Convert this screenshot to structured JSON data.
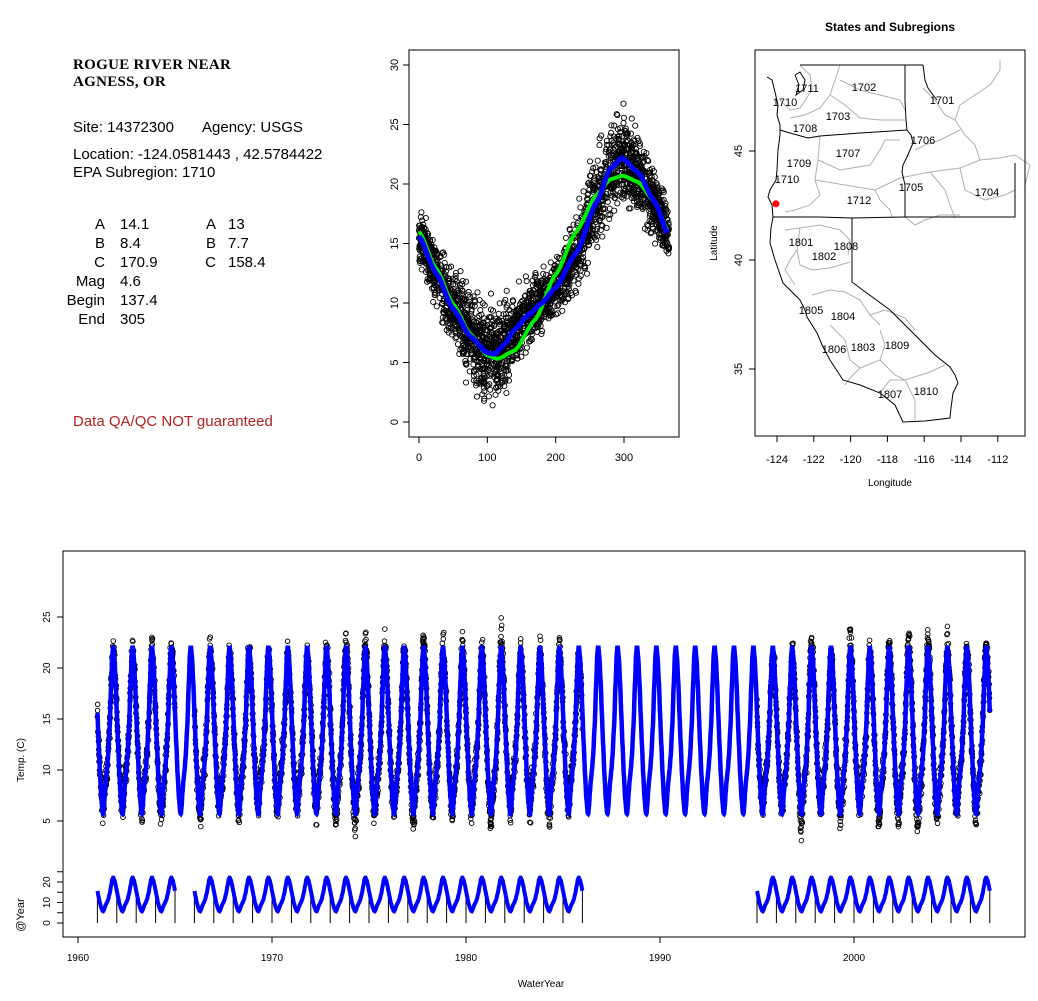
{
  "site_info": {
    "title_line1": "ROGUE RIVER NEAR",
    "title_line2": "AGNESS, OR",
    "site": "Site: 14372300",
    "agency": "Agency: USGS",
    "location": "Location: -124.0581443 , 42.5784422",
    "epa_subregion": "EPA Subregion: 1710",
    "params_col1": [
      {
        "label": "A",
        "value": "14.1"
      },
      {
        "label": "B",
        "value": "8.4"
      },
      {
        "label": "C",
        "value": "170.9"
      },
      {
        "label": "Mag",
        "value": "4.6"
      },
      {
        "label": "Begin",
        "value": "137.4"
      },
      {
        "label": "End",
        "value": "305"
      }
    ],
    "params_col2": [
      {
        "label": "A",
        "value": "13"
      },
      {
        "label": "B",
        "value": "7.7"
      },
      {
        "label": "C",
        "value": "158.4"
      }
    ],
    "disclaimer": "Data QA/QC NOT guaranteed",
    "disclaimer_color": "#b22222"
  },
  "chart_data": [
    {
      "id": "annual-cycle",
      "type": "scatter",
      "title": "",
      "xlabel": "",
      "ylabel": "",
      "xlim": [
        0,
        365
      ],
      "ylim": [
        0,
        30
      ],
      "x_ticks": [
        "0",
        "100",
        "200",
        "300"
      ],
      "y_ticks": [
        "0",
        "5",
        "10",
        "15",
        "20",
        "25",
        "30"
      ],
      "series": [
        {
          "name": "observations",
          "style": "open-circles",
          "color": "#000000"
        },
        {
          "name": "model-fit-mag",
          "style": "line",
          "color": "#0000ff",
          "x": [
            0,
            25,
            50,
            75,
            100,
            110,
            125,
            140,
            160,
            180,
            200,
            230,
            260,
            280,
            297,
            320,
            345,
            365
          ],
          "y": [
            15.6,
            12.5,
            9.5,
            7.2,
            5.8,
            5.7,
            6.5,
            7.8,
            9.0,
            10.0,
            11.3,
            14.2,
            18.5,
            21.3,
            22.2,
            21.0,
            18.5,
            15.7
          ]
        },
        {
          "name": "model-fit-sine",
          "style": "line",
          "color": "#00ee00",
          "x": [
            0,
            25,
            50,
            75,
            100,
            115,
            140,
            170,
            200,
            230,
            260,
            280,
            298,
            320,
            345,
            365
          ],
          "y": [
            16.0,
            12.9,
            9.9,
            7.4,
            5.6,
            5.3,
            6.0,
            8.6,
            12.4,
            16.0,
            19.1,
            20.4,
            20.7,
            20.2,
            18.5,
            16.0
          ]
        }
      ]
    },
    {
      "id": "subregion-map",
      "type": "map",
      "title": "States and Subregions",
      "xlabel": "Longitude",
      "ylabel": "Latitude",
      "x_ticks": [
        "-124",
        "-122",
        "-120",
        "-118",
        "-116",
        "-114",
        "-112"
      ],
      "y_ticks": [
        "35",
        "40",
        "45"
      ],
      "subregions": [
        "1711",
        "1702",
        "1701",
        "1710",
        "1703",
        "1708",
        "1706",
        "1707",
        "1709",
        "1710",
        "1705",
        "1704",
        "1712",
        "1801",
        "1808",
        "1802",
        "1805",
        "1804",
        "1806",
        "1803",
        "1809",
        "1807",
        "1810"
      ],
      "site_marker": {
        "lon": -124.0581443,
        "lat": 42.5784422,
        "color": "#ff0000"
      }
    },
    {
      "id": "time-series",
      "type": "scatter",
      "xlabel": "WaterYear",
      "ylabel_upper": "Temp. (C)",
      "ylabel_lower": "@Year",
      "xlim": [
        1959.3,
        2008.9
      ],
      "x_ticks": [
        "1960",
        "1970",
        "1980",
        "1990",
        "2000"
      ],
      "y_ticks_upper": [
        "5",
        "10",
        "15",
        "20",
        "25"
      ],
      "y_ticks_lower": [
        "0",
        "10",
        "20"
      ],
      "model_range": [
        1961,
        2007
      ],
      "observed_periods": [
        [
          1961,
          1965
        ],
        [
          1966,
          1986
        ],
        [
          1995,
          2007
        ]
      ],
      "series": [
        {
          "name": "observations",
          "style": "open-circles",
          "color": "#000000"
        },
        {
          "name": "model",
          "style": "line",
          "color": "#0000ff"
        },
        {
          "name": "per-year-model",
          "style": "line",
          "color": "#0000ff"
        }
      ]
    }
  ]
}
